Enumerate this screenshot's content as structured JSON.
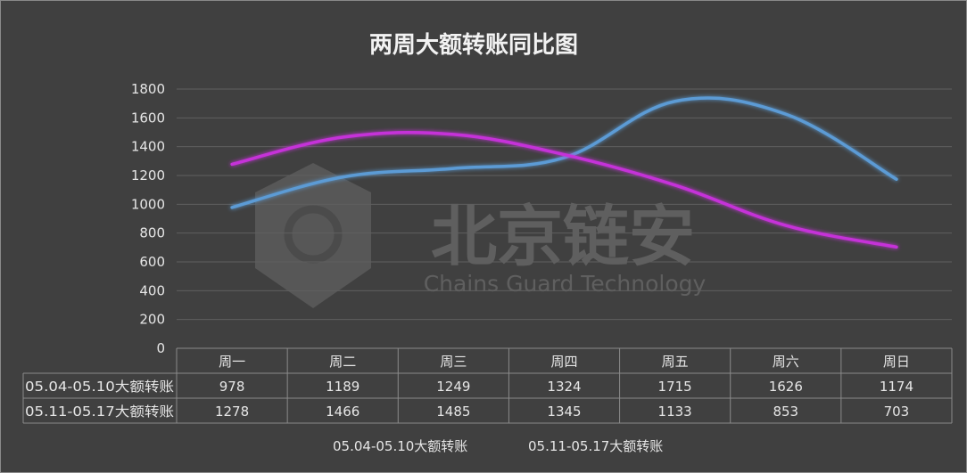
{
  "chart_data": {
    "type": "line",
    "title": "两周大额转账同比图",
    "categories": [
      "周一",
      "周二",
      "周三",
      "周四",
      "周五",
      "周六",
      "周日"
    ],
    "series": [
      {
        "name": "05.04-05.10大额转账",
        "values": [
          978,
          1189,
          1249,
          1324,
          1715,
          1626,
          1174
        ],
        "color": "#5b9bd5"
      },
      {
        "name": "05.11-05.17大额转账",
        "values": [
          1278,
          1466,
          1485,
          1345,
          1133,
          853,
          703
        ],
        "color": "#c532d8"
      }
    ],
    "ylim": [
      0,
      1800
    ],
    "yticks": [
      0,
      200,
      400,
      600,
      800,
      1000,
      1200,
      1400,
      1600,
      1800
    ],
    "grid": true,
    "data_table": true,
    "legend": "bottom",
    "watermark": {
      "main": "北京链安",
      "sub": "Chains Guard Technology"
    }
  },
  "colors": {
    "background": "#404040",
    "grid": "#5f5f5f",
    "text": "#e6e6e6"
  }
}
